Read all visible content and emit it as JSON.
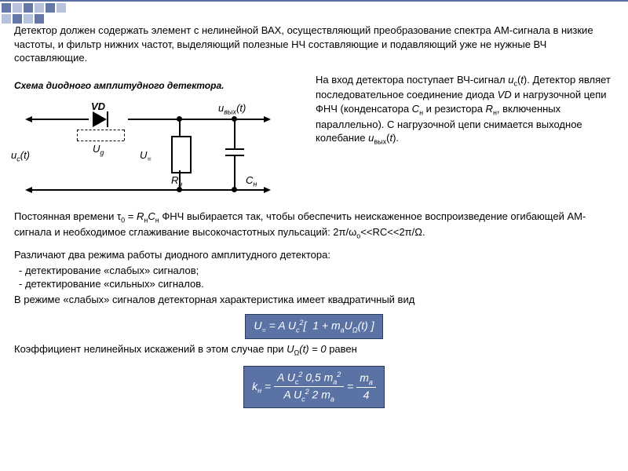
{
  "decor": {
    "bar_color": "#5a6ea4",
    "square_light": "#b8c2dc",
    "square_dark": "#6678a8"
  },
  "p1": "Детектор должен содержать элемент с нелинейной ВАХ, осуществляющий преобразование спектра АМ-сигнала в низкие частоты, и фильтр нижних  частот, выделяющий  полезные НЧ составляющие и подавляющий уже не нужные ВЧ составляющие.",
  "circuit_title": "Схема диодного амплитудного детектора.",
  "circuit": {
    "VD": "VD",
    "u_out": "u",
    "u_out_sub": "вых",
    "u_out_arg": "(t)",
    "u_c": "u",
    "u_c_sub": "c",
    "u_c_arg": "(t)",
    "Ug": "U",
    "Ug_sub": "g",
    "Ueq": "U",
    "Ueq_sub": "=",
    "Rn": "R",
    "Rn_sub": "н",
    "Cn": "C",
    "Cn_sub": "н"
  },
  "p_right_1a": "На вход детектора поступает ВЧ-сигнал ",
  "p_right_1b": "(",
  "p_right_1c": ").",
  "p_right_uc": "u",
  "p_right_uc_sub": "c",
  "p_right_t": "t",
  "p_right_2": "Детектор являет последовательное соединение диода ",
  "p_right_VD": "VD",
  "p_right_3": " и нагрузочной цепи ФНЧ (конденсатора ",
  "p_right_Cn": "C",
  "p_right_Cn_sub": "н",
  "p_right_4": " и резистора ",
  "p_right_Rn": "R",
  "p_right_Rn_sub": "н",
  "p_right_5": ", включенных параллельно). С нагрузочной цепи снимается выходное колебание ",
  "p_right_uout": "u",
  "p_right_uout_sub": "вых",
  "p_right_6": "(",
  "p_right_7": ").",
  "p_tau_1": "Постоянная времени τ",
  "p_tau_sub0": "0",
  "p_tau_2": " = ",
  "p_tau_Rn": "R",
  "p_tau_Rn_sub": "н",
  "p_tau_Cn": "C",
  "p_tau_Cn_sub": "н",
  "p_tau_3": " ФНЧ выбирается так, чтобы обеспечить неискаженное воспроизведение огибающей  АМ-сигнала и необходимое сглаживание высокочастотных пульсаций: 2π/ω",
  "p_tau_wo": "о",
  "p_tau_4": "<<RC<<2π/Ω.",
  "p_modes_head": "Различают два режима работы диодного амплитудного детектора:",
  "mode1": "детектирование «слабых» сигналов;",
  "mode2": "детектирование «сильных» сигналов.",
  "p_weak": "В режиме «слабых» сигналов детекторная характеристика имеет квадратичный вид",
  "formula1": "U= = A U c² [  1 + maUΩ(t) ]",
  "formula1_html": "U<span class='sub'>=</span> = A U<span class='sub'>c</span><sup style='font-size:9px'>2</sup>[&nbsp; 1 + m<span class='sub'>a</span>U<span class='sub'>Ω</span>(t) ]",
  "p_kn_1": "Коэффициент нелинейных искажений в этом случае при ",
  "p_kn_U": "U",
  "p_kn_Omega": "Ω",
  "p_kn_arg": "(t) = 0",
  "p_kn_2": "  равен",
  "formula2_html": "k<span class='sub'>н</span> = <span style='display:inline-block;vertical-align:middle;text-align:center'><span style='display:block;border-bottom:1px solid #fff;padding:0 4px'>A U<span class='sub'>c</span><sup style='font-size:9px'>2</sup> 0,5 m<span class='sub'>a</span><sup style='font-size:9px'>2</sup></span><span style='display:block;padding:0 4px'>A U<span class='sub'>c</span><sup style='font-size:9px'>2</sup> 2 m<span class='sub'>a</span></span></span> = <span style='display:inline-block;vertical-align:middle;text-align:center'><span style='display:block;border-bottom:1px solid #fff;padding:0 4px'>m<span class='sub'>a</span></span><span style='display:block;padding:0 4px'>4</span></span>"
}
